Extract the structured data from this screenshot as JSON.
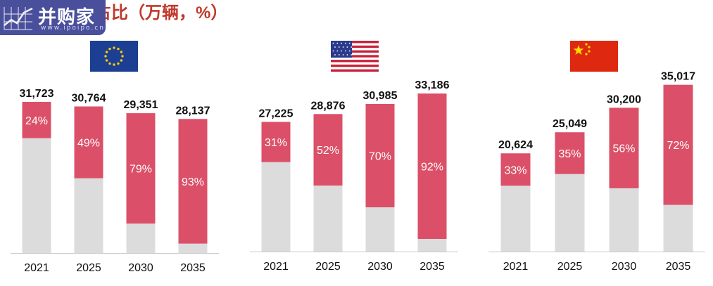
{
  "title": "和互联车辆占比（万辆，%）",
  "logo": {
    "name": "并购家",
    "url": "www.ipoipo.cn"
  },
  "flags": [
    {
      "name": "eu-flag-icon"
    },
    {
      "name": "us-flag-icon"
    },
    {
      "name": "china-flag-icon"
    }
  ],
  "colors": {
    "connected": "#db5068",
    "other": "#dcdcdc",
    "title": "#c0392b",
    "logo_bg": "#4a4f9c"
  },
  "chart_data": [
    {
      "type": "bar",
      "region": "EU",
      "stacked": true,
      "categories": [
        "2021",
        "2025",
        "2030",
        "2035"
      ],
      "totals": [
        31723,
        30764,
        29351,
        28137
      ],
      "total_labels": [
        "31,723",
        "30,764",
        "29,351",
        "28,137"
      ],
      "connected_share": [
        24,
        49,
        79,
        93
      ],
      "share_labels": [
        "24%",
        "49%",
        "79%",
        "93%"
      ],
      "ylim": [
        0,
        36000
      ]
    },
    {
      "type": "bar",
      "region": "US",
      "stacked": true,
      "categories": [
        "2021",
        "2025",
        "2030",
        "2035"
      ],
      "totals": [
        27225,
        28876,
        30985,
        33186
      ],
      "total_labels": [
        "27,225",
        "28,876",
        "30,985",
        "33,186"
      ],
      "connected_share": [
        31,
        52,
        70,
        92
      ],
      "share_labels": [
        "31%",
        "52%",
        "70%",
        "92%"
      ],
      "ylim": [
        0,
        36000
      ]
    },
    {
      "type": "bar",
      "region": "China",
      "stacked": true,
      "categories": [
        "2021",
        "2025",
        "2030",
        "2035"
      ],
      "totals": [
        20624,
        25049,
        30200,
        35017
      ],
      "total_labels": [
        "20,624",
        "25,049",
        "30,200",
        "35,017"
      ],
      "connected_share": [
        33,
        35,
        56,
        72
      ],
      "share_labels": [
        "33%",
        "35%",
        "56%",
        "72%"
      ],
      "ylim": [
        0,
        36000
      ]
    }
  ]
}
